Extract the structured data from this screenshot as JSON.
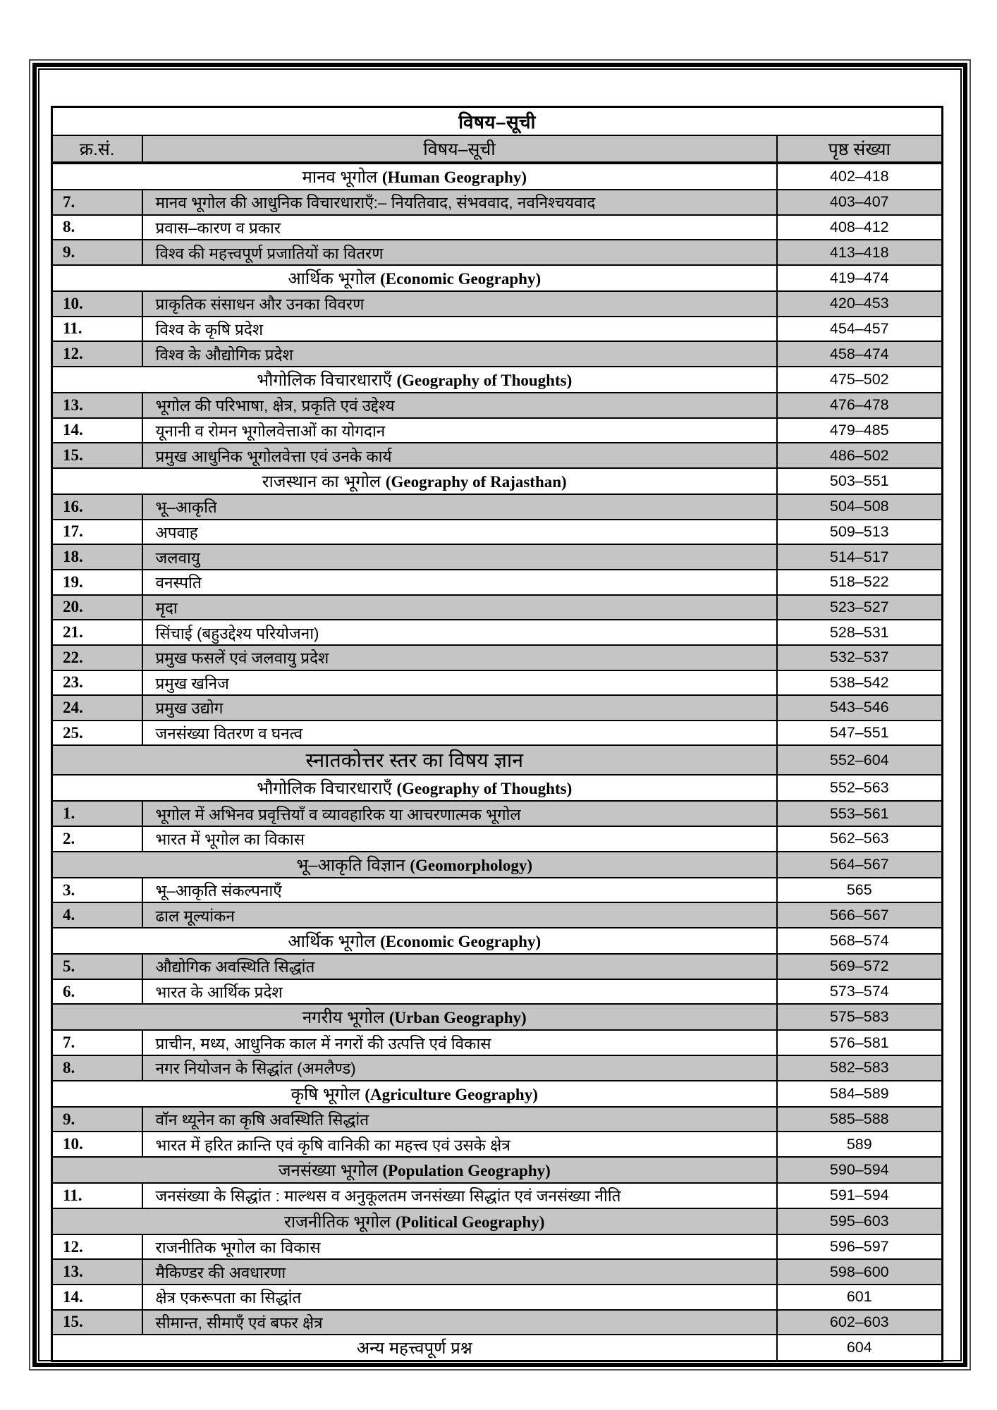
{
  "page": {
    "title": "विषय–सूची",
    "columns": [
      "क्र.सं.",
      "विषय–सूची",
      "पृष्ठ संख्या"
    ]
  },
  "colors": {
    "row_shade": "#c5c5c5",
    "border": "#000000",
    "background": "#ffffff"
  },
  "rows": [
    {
      "kind": "section",
      "hi": "मानव भूगोल",
      "en": "(Human Geography)",
      "pages": "402–418",
      "gray": false
    },
    {
      "kind": "item",
      "num": "7.",
      "hi": "मानव भूगोल की आधुनिक विचारधाराएँ:– नियतिवाद, संभववाद, नवनिश्चयवाद",
      "pages": "403–407",
      "gray": true
    },
    {
      "kind": "item",
      "num": "8.",
      "hi": "प्रवास–कारण व प्रकार",
      "pages": "408–412",
      "gray": false
    },
    {
      "kind": "item",
      "num": "9.",
      "hi": "विश्व की महत्त्वपूर्ण प्रजातियों का वितरण",
      "pages": "413–418",
      "gray": true
    },
    {
      "kind": "section",
      "hi": "आर्थिक भूगोल",
      "en": "(Economic Geography)",
      "pages": "419–474",
      "gray": false
    },
    {
      "kind": "item",
      "num": "10.",
      "hi": "प्राकृतिक संसाधन और उनका विवरण",
      "pages": "420–453",
      "gray": true
    },
    {
      "kind": "item",
      "num": "11.",
      "hi": "विश्व के कृषि प्रदेश",
      "pages": "454–457",
      "gray": false
    },
    {
      "kind": "item",
      "num": "12.",
      "hi": "विश्व के औद्योगिक प्रदेश",
      "pages": "458–474",
      "gray": true
    },
    {
      "kind": "section",
      "hi": "भौगोलिक विचारधाराएँ",
      "en": "(Geography of Thoughts)",
      "pages": "475–502",
      "gray": false
    },
    {
      "kind": "item",
      "num": "13.",
      "hi": "भूगोल की परिभाषा, क्षेत्र, प्रकृति एवं उद्देश्य",
      "pages": "476–478",
      "gray": true
    },
    {
      "kind": "item",
      "num": "14.",
      "hi": "यूनानी व रोमन भूगोलवेत्ताओं का योगदान",
      "pages": "479–485",
      "gray": false
    },
    {
      "kind": "item",
      "num": "15.",
      "hi": "प्रमुख आधुनिक भूगोलवेत्ता एवं उनके कार्य",
      "pages": "486–502",
      "gray": true
    },
    {
      "kind": "section",
      "hi": "राजस्थान का भूगोल",
      "en": "(Geography of Rajasthan)",
      "pages": "503–551",
      "gray": false
    },
    {
      "kind": "item",
      "num": "16.",
      "hi": "भू–आकृति",
      "pages": "504–508",
      "gray": true
    },
    {
      "kind": "item",
      "num": "17.",
      "hi": "अपवाह",
      "pages": "509–513",
      "gray": false
    },
    {
      "kind": "item",
      "num": "18.",
      "hi": "जलवायु",
      "pages": "514–517",
      "gray": true
    },
    {
      "kind": "item",
      "num": "19.",
      "hi": "वनस्पति",
      "pages": "518–522",
      "gray": false
    },
    {
      "kind": "item",
      "num": "20.",
      "hi": "मृदा",
      "pages": "523–527",
      "gray": true
    },
    {
      "kind": "item",
      "num": "21.",
      "hi": "सिंचाई (बहुउद्देश्य परियोजना)",
      "pages": "528–531",
      "gray": false
    },
    {
      "kind": "item",
      "num": "22.",
      "hi": "प्रमुख फसलें एवं जलवायु प्रदेश",
      "pages": "532–537",
      "gray": true
    },
    {
      "kind": "item",
      "num": "23.",
      "hi": "प्रमुख खनिज",
      "pages": "538–542",
      "gray": false
    },
    {
      "kind": "item",
      "num": "24.",
      "hi": "प्रमुख उद्योग",
      "pages": "543–546",
      "gray": true
    },
    {
      "kind": "item",
      "num": "25.",
      "hi": "जनसंख्या वितरण व घनत्व",
      "pages": "547–551",
      "gray": false
    },
    {
      "kind": "big-section",
      "hi": "स्नातकोत्तर स्तर का विषय ज्ञान",
      "en": "",
      "pages": "552–604",
      "gray": true
    },
    {
      "kind": "section",
      "hi": "भौगोलिक विचारधाराएँ",
      "en": "(Geography of Thoughts)",
      "pages": "552–563",
      "gray": false
    },
    {
      "kind": "item",
      "num": "1.",
      "hi": "भूगोल में अभिनव प्रवृत्तियाँ व व्यावहारिक या आचरणात्मक भूगोल",
      "pages": "553–561",
      "gray": true
    },
    {
      "kind": "item",
      "num": "2.",
      "hi": "भारत में भूगोल का विकास",
      "pages": "562–563",
      "gray": false
    },
    {
      "kind": "section",
      "hi": "भू–आकृति विज्ञान",
      "en": "(Geomorphology)",
      "pages": "564–567",
      "gray": true
    },
    {
      "kind": "item",
      "num": "3.",
      "hi": "भू–आकृति संकल्पनाएँ",
      "pages": "565",
      "gray": false
    },
    {
      "kind": "item",
      "num": "4.",
      "hi": "ढाल मूल्यांकन",
      "pages": "566–567",
      "gray": true
    },
    {
      "kind": "section",
      "hi": "आर्थिक भूगोल",
      "en": "(Economic Geography)",
      "pages": "568–574",
      "gray": false
    },
    {
      "kind": "item",
      "num": "5.",
      "hi": "औद्योगिक अवस्थिति सिद्धांत",
      "pages": "569–572",
      "gray": true
    },
    {
      "kind": "item",
      "num": "6.",
      "hi": "भारत के आर्थिक प्रदेश",
      "pages": "573–574",
      "gray": false
    },
    {
      "kind": "section",
      "hi": "नगरीय भूगोल",
      "en": "(Urban Geography)",
      "pages": "575–583",
      "gray": true
    },
    {
      "kind": "item",
      "num": "7.",
      "hi": "प्राचीन, मध्य, आधुनिक काल में नगरों की उत्पत्ति एवं विकास",
      "pages": "576–581",
      "gray": false
    },
    {
      "kind": "item",
      "num": "8.",
      "hi": "नगर नियोजन के सिद्धांत (अमलैण्ड)",
      "pages": "582–583",
      "gray": true
    },
    {
      "kind": "section",
      "hi": "कृषि भूगोल",
      "en": "(Agriculture Geography)",
      "pages": "584–589",
      "gray": false
    },
    {
      "kind": "item",
      "num": "9.",
      "hi": "वॉन थ्यूनेन का कृषि अवस्थिति सिद्धांत",
      "pages": "585–588",
      "gray": true
    },
    {
      "kind": "item",
      "num": "10.",
      "hi": "भारत में हरित क्रान्ति एवं कृषि वानिकी का महत्त्व एवं उसके क्षेत्र",
      "pages": "589",
      "gray": false
    },
    {
      "kind": "section",
      "hi": "जनसंख्या भूगोल",
      "en": "(Population Geography)",
      "pages": "590–594",
      "gray": true
    },
    {
      "kind": "item",
      "num": "11.",
      "hi": "जनसंख्या के सिद्धांत : माल्थस व अनुकूलतम जनसंख्या सिद्धांत एवं जनसंख्या नीति",
      "pages": "591–594",
      "gray": false
    },
    {
      "kind": "section",
      "hi": "राजनीतिक भूगोल",
      "en": "(Political Geography)",
      "pages": "595–603",
      "gray": true
    },
    {
      "kind": "item",
      "num": "12.",
      "hi": "राजनीतिक भूगोल का विकास",
      "pages": "596–597",
      "gray": false
    },
    {
      "kind": "item",
      "num": "13.",
      "hi": "मैकिण्डर की अवधारणा",
      "pages": "598–600",
      "gray": true
    },
    {
      "kind": "item",
      "num": "14.",
      "hi": "क्षेत्र एकरूपता का सिद्धांत",
      "pages": "601",
      "gray": false
    },
    {
      "kind": "item",
      "num": "15.",
      "hi": "सीमान्त, सीमाएँ एवं बफर क्षेत्र",
      "pages": "602–603",
      "gray": true
    },
    {
      "kind": "section",
      "hi": "अन्य महत्त्वपूर्ण प्रश्न",
      "en": "",
      "pages": "604",
      "gray": false
    }
  ]
}
